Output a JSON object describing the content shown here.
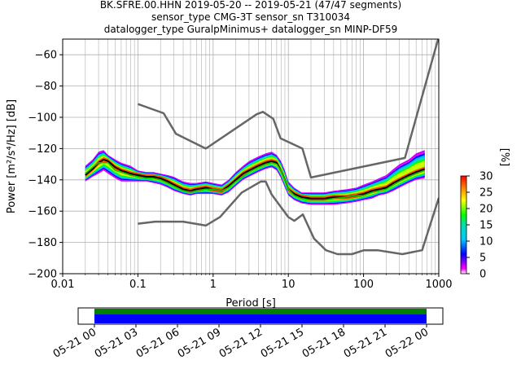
{
  "title_lines": [
    "BK.SFRE.00.HHN   2019-05-20 -- 2019-05-21  (47/47 segments)",
    "sensor_type CMG-3T sensor_sn T310034",
    "datalogger_type GuralpMinimus+ datalogger_sn MINP-DF59"
  ],
  "xlabel": "Period [s]",
  "ylabel": "Power [m²/s⁴/Hz] [dB]",
  "colorbar": {
    "label": "[%]",
    "ticks": [
      "0",
      "5",
      "10",
      "15",
      "20",
      "25",
      "30"
    ],
    "range": [
      0,
      30
    ],
    "colormap": "pqlx"
  },
  "timeline": {
    "tick_labels": [
      "05-21 00",
      "05-21 03",
      "05-21 06",
      "05-21 09",
      "05-21 12",
      "05-21 15",
      "05-21 18",
      "05-21 21",
      "05-22 00"
    ],
    "bar_colors": {
      "top": "#008000",
      "bottom": "#0000ff"
    }
  },
  "chart_data": {
    "type": "line",
    "xscale": "log",
    "xlim": [
      0.01,
      1000
    ],
    "ylim": [
      -200,
      -50
    ],
    "xticks": [
      0.01,
      0.1,
      1,
      10,
      100,
      1000
    ],
    "xtick_labels": [
      "0.01",
      "0.1",
      "1",
      "10",
      "100",
      "1000"
    ],
    "yticks": [
      -200,
      -180,
      -160,
      -140,
      -120,
      -100,
      -80,
      -60
    ],
    "ytick_labels": [
      "−200",
      "−180",
      "−160",
      "−140",
      "−120",
      "−100",
      "−80",
      "−60"
    ],
    "grid": true,
    "series": [
      {
        "role": "noise-model-high",
        "color": "#666666",
        "x": [
          0.1,
          0.22,
          0.32,
          0.8,
          3.8,
          4.6,
          6.3,
          7.9,
          15.4,
          20,
          354.8,
          10000
        ],
        "y": [
          -91.5,
          -97.4,
          -110.5,
          -120,
          -98,
          -96.5,
          -101,
          -113.5,
          -120,
          -138.5,
          -126,
          -48.5
        ]
      },
      {
        "role": "noise-model-low",
        "color": "#666666",
        "x": [
          0.1,
          0.17,
          0.4,
          0.8,
          1.24,
          2.4,
          4.3,
          5,
          6,
          10,
          12,
          15.6,
          21.9,
          31.6,
          45,
          70,
          101,
          154,
          328,
          600,
          10000
        ],
        "y": [
          -168,
          -166.7,
          -166.7,
          -169.2,
          -163.7,
          -148.1,
          -141.1,
          -141.1,
          -149.4,
          -163.8,
          -166.2,
          -162.1,
          -177.5,
          -185,
          -187.5,
          -187.5,
          -185,
          -185,
          -187.5,
          -185,
          -151.5
        ]
      },
      {
        "role": "median",
        "color": "#000000",
        "x": [
          0.02,
          0.025,
          0.03,
          0.035,
          0.04,
          0.05,
          0.06,
          0.08,
          0.1,
          0.13,
          0.16,
          0.2,
          0.25,
          0.3,
          0.4,
          0.5,
          0.6,
          0.8,
          1,
          1.3,
          1.6,
          2,
          2.5,
          3,
          4,
          5,
          6,
          7,
          8,
          9,
          10,
          12,
          15,
          20,
          30,
          40,
          60,
          80,
          100,
          130,
          160,
          200,
          250,
          300,
          400,
          500,
          650
        ],
        "y": [
          -137,
          -133,
          -129,
          -127,
          -128,
          -132,
          -134,
          -136,
          -137,
          -138,
          -138,
          -139,
          -141,
          -143,
          -146,
          -147,
          -146,
          -145,
          -146,
          -147,
          -144,
          -140,
          -136,
          -134,
          -131,
          -129,
          -128,
          -129,
          -134,
          -140,
          -146,
          -149,
          -151,
          -152,
          -152,
          -151,
          -151,
          -150,
          -149,
          -147,
          -146,
          -145,
          -142,
          -140,
          -137,
          -135,
          -133
        ]
      },
      {
        "role": "mode",
        "color": "#00cc00",
        "x": [
          0.02,
          0.025,
          0.03,
          0.04,
          0.05,
          0.06,
          0.08,
          0.1,
          0.13,
          0.16,
          0.2,
          0.3,
          0.4,
          0.5,
          0.6,
          0.8,
          1,
          1.3,
          1.6,
          2,
          3,
          4,
          5,
          6,
          7,
          8,
          10,
          12,
          15,
          20,
          30,
          40,
          60,
          80,
          100,
          130,
          160,
          200,
          300,
          400,
          500,
          650
        ],
        "y": [
          -136,
          -132,
          -129,
          -129,
          -134,
          -135,
          -137,
          -138,
          -139,
          -139,
          -140,
          -144,
          -147,
          -148,
          -147,
          -146,
          -146,
          -147,
          -145,
          -141,
          -135,
          -132,
          -130,
          -129,
          -130,
          -134,
          -146,
          -150,
          -152,
          -153,
          -153,
          -152,
          -151,
          -150,
          -150,
          -148,
          -147,
          -146,
          -141,
          -138,
          -136,
          -134
        ]
      }
    ],
    "psd_density_band": {
      "x": [
        0.02,
        0.025,
        0.03,
        0.035,
        0.04,
        0.05,
        0.06,
        0.08,
        0.1,
        0.13,
        0.16,
        0.2,
        0.25,
        0.3,
        0.4,
        0.5,
        0.6,
        0.8,
        1,
        1.3,
        1.6,
        2,
        2.5,
        3,
        4,
        5,
        6,
        7,
        8,
        9,
        10,
        12,
        15,
        20,
        30,
        40,
        60,
        80,
        100,
        130,
        160,
        200,
        250,
        300,
        400,
        500,
        650
      ],
      "y_low": [
        -141,
        -138,
        -136,
        -134,
        -136,
        -139,
        -141,
        -141,
        -141,
        -141,
        -142,
        -143,
        -145,
        -147,
        -149,
        -150,
        -149,
        -149,
        -149,
        -150,
        -148,
        -144,
        -140,
        -138,
        -135,
        -133,
        -132,
        -134,
        -139,
        -145,
        -150,
        -153,
        -155,
        -156,
        -156,
        -156,
        -155,
        -154,
        -153,
        -152,
        -150,
        -149,
        -147,
        -145,
        -142,
        -140,
        -139
      ],
      "y_high": [
        -131,
        -127,
        -122,
        -121,
        -124,
        -127,
        -129,
        -131,
        -134,
        -135,
        -135,
        -136,
        -137,
        -138,
        -141,
        -142,
        -142,
        -141,
        -142,
        -143,
        -140,
        -135,
        -131,
        -128,
        -125,
        -123,
        -122,
        -124,
        -128,
        -134,
        -141,
        -145,
        -148,
        -148,
        -148,
        -147,
        -146,
        -145,
        -143,
        -141,
        -139,
        -137,
        -133,
        -130,
        -127,
        -123,
        -121
      ]
    }
  }
}
